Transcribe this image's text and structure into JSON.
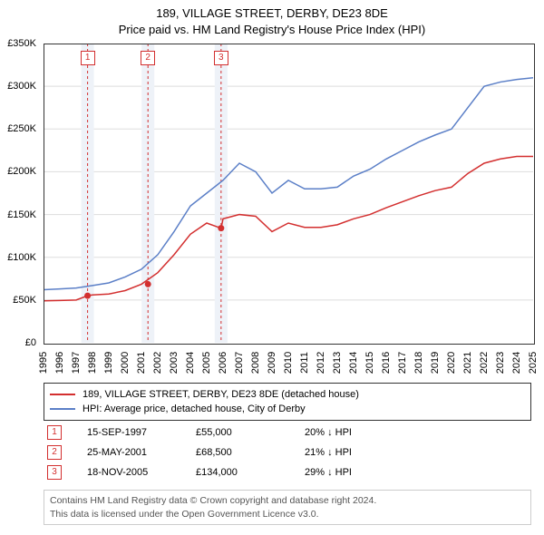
{
  "title": {
    "line1": "189, VILLAGE STREET, DERBY, DE23 8DE",
    "line2": "Price paid vs. HM Land Registry's House Price Index (HPI)"
  },
  "chart": {
    "type": "line",
    "xlim": [
      1995,
      2025
    ],
    "ylim": [
      0,
      350000
    ],
    "ytick_step": 50000,
    "yticks": [
      "£0",
      "£50K",
      "£100K",
      "£150K",
      "£200K",
      "£250K",
      "£300K",
      "£350K"
    ],
    "xticks": [
      "1995",
      "1996",
      "1997",
      "1998",
      "1999",
      "2000",
      "2001",
      "2002",
      "2003",
      "2004",
      "2005",
      "2006",
      "2007",
      "2008",
      "2009",
      "2010",
      "2011",
      "2012",
      "2013",
      "2014",
      "2015",
      "2016",
      "2017",
      "2018",
      "2019",
      "2020",
      "2021",
      "2022",
      "2023",
      "2024",
      "2025"
    ],
    "background_color": "#ffffff",
    "border_color": "#333333",
    "grid_color": "#dddddd",
    "marker_band_color": "#eef2f8",
    "marker_line_color": "#d32f2f",
    "series": [
      {
        "name": "red",
        "color": "#d32f2f",
        "width": 1.5,
        "data": [
          [
            1995,
            49000
          ],
          [
            1996,
            49500
          ],
          [
            1997,
            50000
          ],
          [
            1997.7,
            55000
          ],
          [
            1998,
            56000
          ],
          [
            1999,
            57000
          ],
          [
            2000,
            61000
          ],
          [
            2001,
            68500
          ],
          [
            2002,
            82000
          ],
          [
            2003,
            103000
          ],
          [
            2004,
            127000
          ],
          [
            2005,
            140000
          ],
          [
            2005.88,
            134000
          ],
          [
            2006,
            145000
          ],
          [
            2007,
            150000
          ],
          [
            2008,
            148000
          ],
          [
            2009,
            130000
          ],
          [
            2010,
            140000
          ],
          [
            2011,
            135000
          ],
          [
            2012,
            135000
          ],
          [
            2013,
            138000
          ],
          [
            2014,
            145000
          ],
          [
            2015,
            150000
          ],
          [
            2016,
            158000
          ],
          [
            2017,
            165000
          ],
          [
            2018,
            172000
          ],
          [
            2019,
            178000
          ],
          [
            2020,
            182000
          ],
          [
            2021,
            198000
          ],
          [
            2022,
            210000
          ],
          [
            2023,
            215000
          ],
          [
            2024,
            218000
          ],
          [
            2025,
            218000
          ]
        ]
      },
      {
        "name": "blue",
        "color": "#5b7fc7",
        "width": 1.5,
        "data": [
          [
            1995,
            62000
          ],
          [
            1996,
            63000
          ],
          [
            1997,
            64000
          ],
          [
            1998,
            67000
          ],
          [
            1999,
            70000
          ],
          [
            2000,
            77000
          ],
          [
            2001,
            86000
          ],
          [
            2002,
            103000
          ],
          [
            2003,
            130000
          ],
          [
            2004,
            160000
          ],
          [
            2005,
            175000
          ],
          [
            2006,
            190000
          ],
          [
            2007,
            210000
          ],
          [
            2008,
            200000
          ],
          [
            2009,
            175000
          ],
          [
            2010,
            190000
          ],
          [
            2011,
            180000
          ],
          [
            2012,
            180000
          ],
          [
            2013,
            182000
          ],
          [
            2014,
            195000
          ],
          [
            2015,
            203000
          ],
          [
            2016,
            215000
          ],
          [
            2017,
            225000
          ],
          [
            2018,
            235000
          ],
          [
            2019,
            243000
          ],
          [
            2020,
            250000
          ],
          [
            2021,
            275000
          ],
          [
            2022,
            300000
          ],
          [
            2023,
            305000
          ],
          [
            2024,
            308000
          ],
          [
            2025,
            310000
          ]
        ]
      }
    ],
    "markers": [
      {
        "n": "1",
        "year": 1997.7,
        "value": 55000
      },
      {
        "n": "2",
        "year": 2001.4,
        "value": 68500
      },
      {
        "n": "3",
        "year": 2005.88,
        "value": 134000
      }
    ]
  },
  "legend": {
    "items": [
      {
        "color": "#d32f2f",
        "label": "189, VILLAGE STREET, DERBY, DE23 8DE (detached house)"
      },
      {
        "color": "#5b7fc7",
        "label": "HPI: Average price, detached house, City of Derby"
      }
    ]
  },
  "transactions": [
    {
      "n": "1",
      "date": "15-SEP-1997",
      "price": "£55,000",
      "pct": "20% ↓ HPI"
    },
    {
      "n": "2",
      "date": "25-MAY-2001",
      "price": "£68,500",
      "pct": "21% ↓ HPI"
    },
    {
      "n": "3",
      "date": "18-NOV-2005",
      "price": "£134,000",
      "pct": "29% ↓ HPI"
    }
  ],
  "footer": {
    "line1": "Contains HM Land Registry data © Crown copyright and database right 2024.",
    "line2": "This data is licensed under the Open Government Licence v3.0."
  }
}
